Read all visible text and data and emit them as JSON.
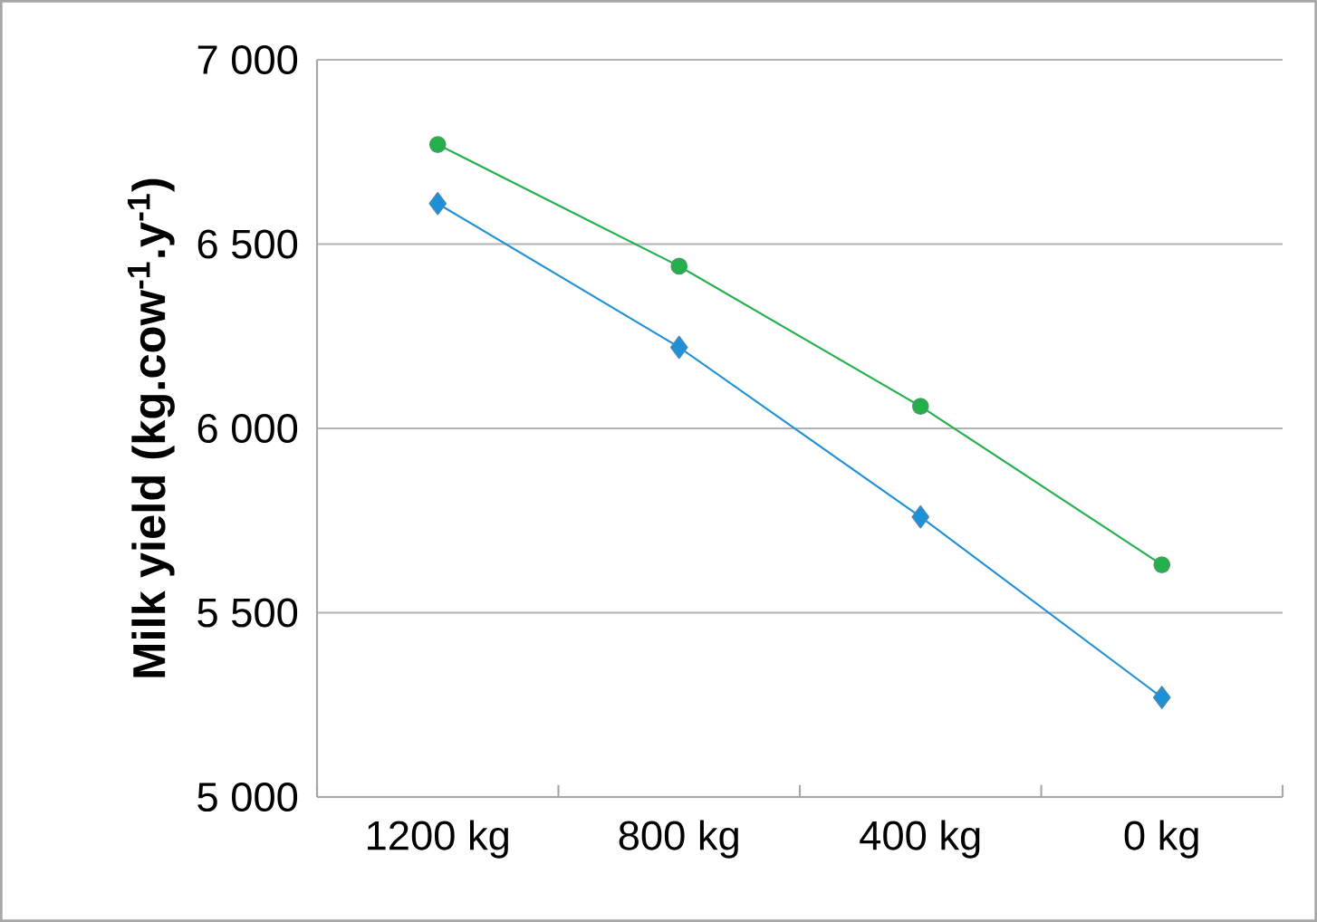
{
  "chart_data": {
    "type": "line",
    "ylabel": "**Milk yield (kg.cow$^{-1}$.y$^{-1}$)**",
    "categories": [
      "1200 kg",
      "800 kg",
      "400 kg",
      "0 kg"
    ],
    "series": [
      {
        "color": "#22b04a",
        "marker": "circle",
        "values": [
          6770,
          6440,
          6060,
          5630
        ]
      },
      {
        "color": "#1e90d8",
        "marker": "diamond",
        "values": [
          6610,
          6220,
          5760,
          5270
        ]
      }
    ],
    "ylim": [
      5000,
      7000
    ],
    "yticks": [
      {
        "value": 5000,
        "label": "5 000"
      },
      {
        "value": 5500,
        "label": "5 500"
      },
      {
        "value": 6000,
        "label": "6 000"
      },
      {
        "value": 6500,
        "label": "6 500"
      },
      {
        "value": 7000,
        "label": "7 000"
      }
    ],
    "grid": "y"
  }
}
